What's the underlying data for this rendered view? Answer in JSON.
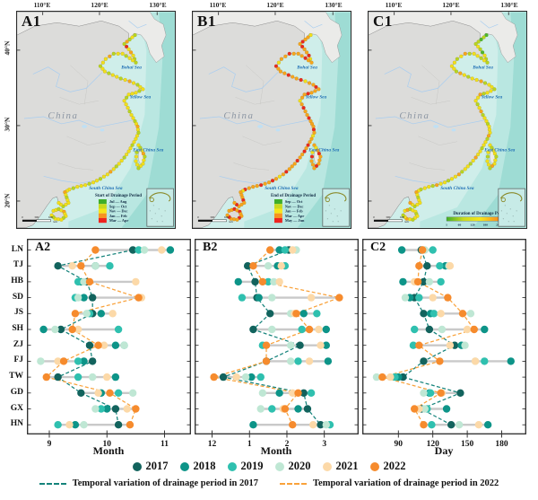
{
  "map_row": {
    "top_ticks": [
      "110°E",
      "120°E",
      "130°E"
    ],
    "lat_ticks": [
      "40°N",
      "30°N",
      "20°N"
    ],
    "sea_labels": [
      "Bohai Sea",
      "Yellow Sea",
      "East China Sea",
      "South China Sea"
    ],
    "country_label": "China",
    "scale_bar": {
      "ticks": [
        "0",
        "300",
        "600"
      ],
      "unit": "km"
    },
    "dot_palette": [
      "#4db829",
      "#b9d51f",
      "#f2df1a",
      "#f7a51c",
      "#ea2a1d"
    ],
    "panels": [
      {
        "label": "A1",
        "legend_title": "Start of Drainage Period",
        "legend_items": [
          {
            "label": "Jul — Aug",
            "color": "#3fae2a"
          },
          {
            "label": "Sep — Oct",
            "color": "#c8da1f"
          },
          {
            "label": "Nov — Dec",
            "color": "#f7e51b"
          },
          {
            "label": "Jan — Feb",
            "color": "#f79420"
          },
          {
            "label": "Mar — Apr",
            "color": "#ee2420"
          }
        ],
        "dot_pattern": "12131423211221221322122122123212212221222122123212221222122123221221222122321222122212312221222122123221222122"
      },
      {
        "label": "B1",
        "legend_title": "End of Drainage Period",
        "legend_items": [
          {
            "label": "Sep — Oct",
            "color": "#3fae2a"
          },
          {
            "label": "Nov — Dec",
            "color": "#c8da1f"
          },
          {
            "label": "Jan — Feb",
            "color": "#f7e51b"
          },
          {
            "label": "Mar — Apr",
            "color": "#f79420"
          },
          {
            "label": "May — Jun",
            "color": "#ee2420"
          }
        ],
        "dot_pattern": "23343433423343334332433343342334333433234334333432334343343334323433433342333433343323433343334233434334333432"
      },
      {
        "label": "C1",
        "legend_title": "Duration of Drainage Period",
        "legend_ramp_ticks": [
          "1",
          "60",
          "120",
          "180",
          "240",
          "245 Day"
        ],
        "dot_pattern": "01011210211212213212221321223122122132212312212223122122321221322122312212321222123212212231221223122122123210"
      }
    ]
  },
  "provinces": [
    "LN",
    "TJ",
    "HB",
    "SD",
    "JS",
    "SH",
    "ZJ",
    "FJ",
    "TW",
    "GD",
    "GX",
    "HN"
  ],
  "chart_data": [
    {
      "type": "scatter",
      "label": "A2",
      "xlabel": "Month",
      "xlim": [
        8.72,
        11.35
      ],
      "xticks": [
        {
          "v": 9,
          "label": "9"
        },
        {
          "v": 10,
          "label": "10"
        },
        {
          "v": 11,
          "label": "11"
        }
      ],
      "categories": [
        "LN",
        "TJ",
        "HB",
        "SD",
        "JS",
        "SH",
        "ZJ",
        "FJ",
        "TW",
        "GD",
        "GX",
        "HN"
      ],
      "series": [
        {
          "name": "2017",
          "values": [
            10.45,
            9.15,
            9.65,
            9.75,
            9.75,
            9.2,
            9.7,
            9.75,
            9.15,
            9.55,
            10.15,
            10.2
          ]
        },
        {
          "name": "2018",
          "values": [
            11.1,
            9.8,
            9.55,
            9.6,
            9.9,
            8.9,
            10.15,
            9.6,
            10.15,
            9.9,
            10.0,
            9.45
          ]
        },
        {
          "name": "2019",
          "values": [
            10.55,
            10.05,
            9.5,
            9.45,
            9.7,
            10.2,
            10.3,
            9.5,
            9.5,
            10.2,
            9.9,
            9.15
          ]
        },
        {
          "name": "2020",
          "values": [
            10.65,
            9.8,
            9.6,
            9.5,
            9.65,
            9.1,
            10.3,
            8.85,
            9.75,
            10.45,
            9.8,
            9.6
          ]
        },
        {
          "name": "2021",
          "values": [
            10.95,
            9.4,
            10.5,
            10.6,
            10.1,
            9.5,
            9.95,
            9.15,
            10.0,
            9.85,
            10.35,
            9.35
          ]
        },
        {
          "name": "2022",
          "values": [
            9.8,
            9.55,
            9.7,
            10.55,
            9.45,
            9.4,
            9.85,
            9.25,
            8.95,
            10.05,
            10.5,
            10.4
          ]
        }
      ]
    },
    {
      "type": "scatter",
      "label": "B2",
      "xlabel": "Month",
      "xlim": [
        11.7,
        15.75
      ],
      "xticks": [
        {
          "v": 12,
          "label": "12"
        },
        {
          "v": 13,
          "label": "1"
        },
        {
          "v": 14,
          "label": "2"
        },
        {
          "v": 15,
          "label": "3"
        }
      ],
      "categories": [
        "LN",
        "TJ",
        "HB",
        "SD",
        "JS",
        "SH",
        "ZJ",
        "FJ",
        "TW",
        "GD",
        "GX",
        "HN"
      ],
      "series": [
        {
          "name": "2017",
          "values": [
            14.05,
            12.95,
            13.15,
            13.2,
            13.55,
            13.1,
            14.35,
            13.45,
            12.3,
            14.45,
            14.55,
            14.9
          ]
        },
        {
          "name": "2018",
          "values": [
            13.8,
            13.75,
            12.7,
            13.25,
            14.45,
            15.05,
            15.05,
            15.1,
            13.05,
            13.8,
            14.3,
            13.1
          ]
        },
        {
          "name": "2019",
          "values": [
            13.95,
            13.95,
            13.5,
            12.8,
            14.8,
            14.4,
            13.35,
            14.3,
            13.3,
            14.65,
            13.6,
            15.15
          ]
        },
        {
          "name": "2020",
          "values": [
            14.25,
            13.5,
            13.65,
            13.6,
            14.1,
            13.6,
            14.1,
            14.1,
            12.9,
            13.35,
            13.3,
            15.05
          ]
        },
        {
          "name": "2021",
          "values": [
            14.15,
            13.85,
            13.8,
            14.65,
            14.2,
            14.85,
            14.9,
            14.6,
            12.65,
            14.15,
            13.9,
            14.7
          ]
        },
        {
          "name": "2022",
          "values": [
            13.55,
            13.1,
            13.35,
            15.4,
            14.25,
            14.6,
            13.45,
            13.45,
            12.05,
            14.3,
            13.95,
            14.15
          ]
        }
      ]
    },
    {
      "type": "scatter",
      "label": "C2",
      "xlabel": "Day",
      "xlim": [
        64,
        196
      ],
      "xticks": [
        {
          "v": 90,
          "label": "90"
        },
        {
          "v": 120,
          "label": "120"
        },
        {
          "v": 150,
          "label": "150"
        },
        {
          "v": 180,
          "label": "180"
        }
      ],
      "categories": [
        "LN",
        "TJ",
        "HB",
        "SD",
        "JS",
        "SH",
        "ZJ",
        "FJ",
        "TW",
        "GD",
        "GX",
        "HN"
      ],
      "series": [
        {
          "name": "2017",
          "values": [
            110,
            115,
            112,
            104,
            112,
            117,
            139,
            112,
            94,
            144,
            110,
            136
          ]
        },
        {
          "name": "2018",
          "values": [
            93,
            131,
            94,
            100,
            118,
            165,
            145,
            188,
            90,
            117,
            132,
            168
          ]
        },
        {
          "name": "2019",
          "values": [
            120,
            126,
            127,
            108,
            121,
            104,
            103,
            165,
            87,
            118,
            115,
            119
          ]
        },
        {
          "name": "2020",
          "values": [
            113,
            134,
            117,
            96,
            153,
            128,
            148,
            157,
            71,
            112,
            113,
            143
          ]
        },
        {
          "name": "2021",
          "values": [
            111,
            135,
            104,
            120,
            127,
            150,
            135,
            157,
            83,
            128,
            108,
            160
          ]
        },
        {
          "name": "2022",
          "values": [
            111,
            108,
            107,
            133,
            146,
            156,
            108,
            126,
            76,
            127,
            104,
            112
          ]
        }
      ]
    }
  ],
  "years_legend": [
    {
      "label": "2017",
      "color": "#12635d"
    },
    {
      "label": "2018",
      "color": "#0d9488"
    },
    {
      "label": "2019",
      "color": "#2fc0af"
    },
    {
      "label": "2020",
      "color": "#bfe7d4"
    },
    {
      "label": "2021",
      "color": "#fcd9a8"
    },
    {
      "label": "2022",
      "color": "#f68b2d"
    }
  ],
  "line_legend": [
    {
      "label": "Temporal variation of drainage period in 2017",
      "color": "#15837b"
    },
    {
      "label": "Temporal variation of drainage period in 2022",
      "color": "#f9a23b"
    }
  ],
  "overlay_years": [
    "2017",
    "2022"
  ],
  "style_colors": {
    "range_line": "#c9c9c9",
    "sea_base": "#cfeeea",
    "sea_mid": "#b9e7e1",
    "sea_deep": "#9edcd4",
    "land_outer": "#ebebe9",
    "land_china": "#dcdcda",
    "river": "#a8cdf0",
    "sea_label": "#1f6fb5",
    "country_label": "#8d97a4"
  }
}
